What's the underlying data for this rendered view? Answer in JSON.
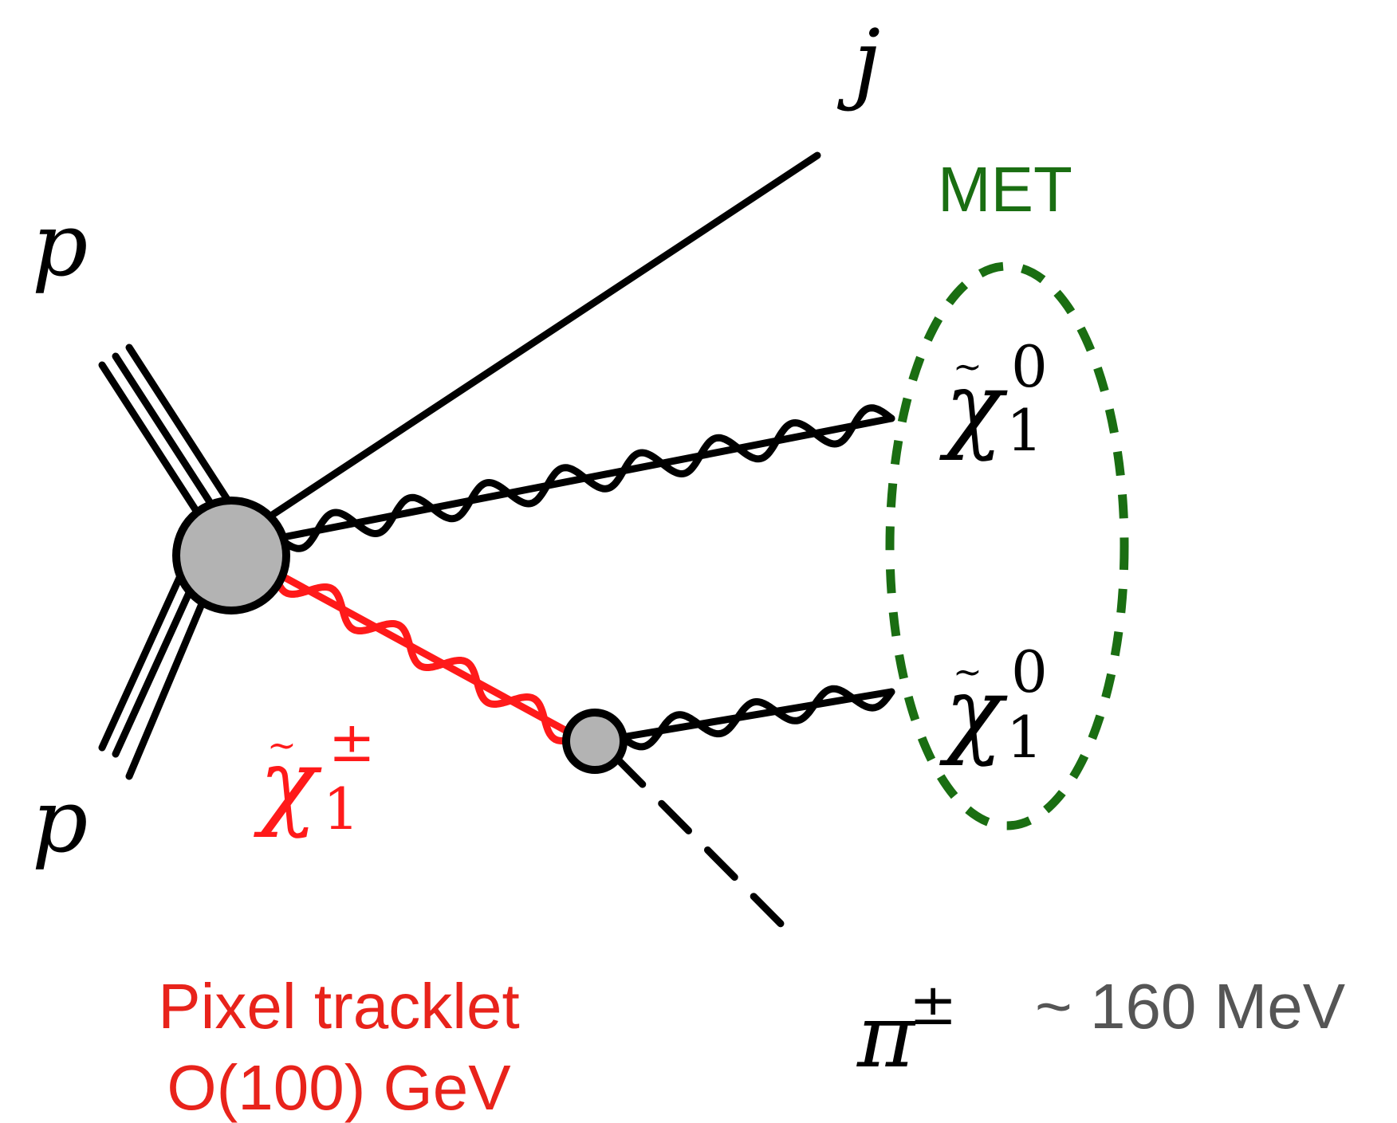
{
  "diagram": {
    "particles": {
      "proton_top": "p",
      "proton_bottom": "p",
      "jet": "j",
      "chargino_symbol": "χ",
      "chargino_sup": "±",
      "chargino_sub": "1",
      "neutralino_symbol": "χ",
      "neutralino_sup": "0",
      "neutralino_sub": "1",
      "pion_symbol": "π",
      "pion_sup": "±"
    },
    "labels": {
      "met": "MET",
      "pion_energy": "~ 160 MeV",
      "tracklet_line1": "Pixel tracklet",
      "tracklet_line2": "O(100) GeV"
    },
    "colors": {
      "line": "#000000",
      "chargino": "#ff1a1a",
      "met": "#1a6e12",
      "tracklet_text": "#e8231b",
      "energy_text": "#555555",
      "vertex_fill": "#b3b3b3"
    }
  }
}
